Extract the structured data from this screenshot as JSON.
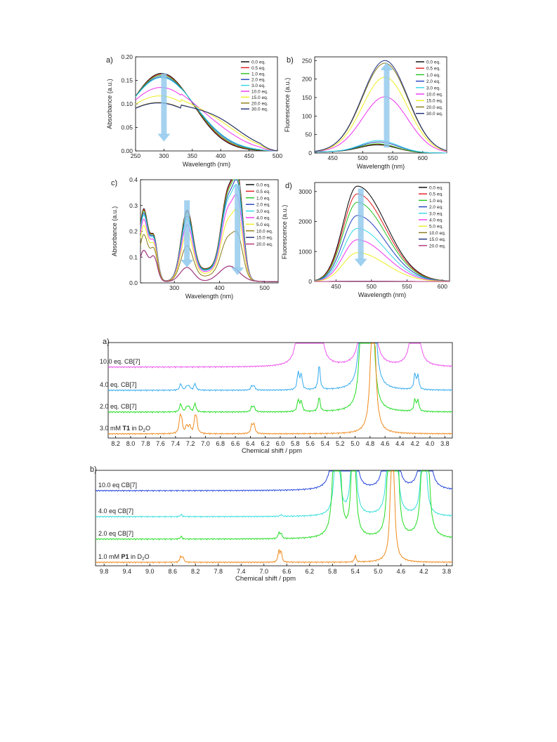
{
  "chart_data": [
    {
      "panel": "a)",
      "type": "line",
      "xlabel": "Wavelength (nm)",
      "ylabel": "Absorbance (a.u.)",
      "xlim": [
        250,
        500
      ],
      "ylim": [
        0,
        0.2
      ],
      "xticks": [
        "250",
        "300",
        "350",
        "400",
        "450",
        "500"
      ],
      "yticks": [
        "0.00",
        "0.05",
        "0.10",
        "0.15",
        "0.20"
      ],
      "legend_position": "top-right",
      "arrow": {
        "direction": "down",
        "x": 300,
        "y_from": 0.165,
        "y_to": 0.02
      },
      "series": [
        {
          "name": "0.0 eq.",
          "color": "#000000",
          "peak_x": 296,
          "peak_y": 0.165
        },
        {
          "name": "0.5 eq.",
          "color": "#e41a1c",
          "peak_x": 296,
          "peak_y": 0.163
        },
        {
          "name": "1.0 eq.",
          "color": "#22c322",
          "peak_x": 296,
          "peak_y": 0.161
        },
        {
          "name": "2.0 eq.",
          "color": "#1f3fbf",
          "peak_x": 296,
          "peak_y": 0.158
        },
        {
          "name": "3.0 eq.",
          "color": "#33d6e6",
          "peak_x": 296,
          "peak_y": 0.156
        },
        {
          "name": "10.0 eq.",
          "color": "#ee33ee",
          "peak_x": 295,
          "peak_y": 0.135
        },
        {
          "name": "15.0 eq.",
          "color": "#eded22",
          "peak_x": 293,
          "peak_y": 0.117
        },
        {
          "name": "20.0 eq.",
          "color": "#8a7a1a",
          "peak_x": 290,
          "peak_y": 0.103
        },
        {
          "name": "30.0 eq.",
          "color": "#1a2a7a",
          "peak_x": 290,
          "peak_y": 0.102
        }
      ]
    },
    {
      "panel": "b)",
      "type": "line",
      "xlabel": "Wavelength (nm)",
      "ylabel": "Fluorescence (a.u.)",
      "xlim": [
        420,
        640
      ],
      "ylim": [
        0,
        260
      ],
      "xticks": [
        "450",
        "500",
        "550",
        "600"
      ],
      "yticks": [
        "0",
        "50",
        "100",
        "150",
        "200",
        "250"
      ],
      "legend_position": "top-right",
      "arrow": {
        "direction": "up",
        "x": 540,
        "y_from": 15,
        "y_to": 245
      },
      "series": [
        {
          "name": "0.0 eq.",
          "color": "#000000",
          "peak_x": 525,
          "peak_y": 22
        },
        {
          "name": "0.5 eq.",
          "color": "#e41a1c",
          "peak_x": 525,
          "peak_y": 24
        },
        {
          "name": "1.0 eq.",
          "color": "#22c322",
          "peak_x": 525,
          "peak_y": 25
        },
        {
          "name": "2.0 eq.",
          "color": "#1f3fbf",
          "peak_x": 527,
          "peak_y": 30
        },
        {
          "name": "3.0 eq.",
          "color": "#33d6e6",
          "peak_x": 527,
          "peak_y": 34
        },
        {
          "name": "10.0 eq.",
          "color": "#ee33ee",
          "peak_x": 537,
          "peak_y": 152
        },
        {
          "name": "15.0 eq.",
          "color": "#eded22",
          "peak_x": 537,
          "peak_y": 205
        },
        {
          "name": "20.0 eq.",
          "color": "#8a7a1a",
          "peak_x": 537,
          "peak_y": 243
        },
        {
          "name": "30.0 eq.",
          "color": "#1a2a7a",
          "peak_x": 537,
          "peak_y": 250
        }
      ]
    },
    {
      "panel": "c)",
      "type": "line",
      "xlabel": "Wavelength (nm)",
      "ylabel": "Absorbance (a.u.)",
      "xlim": [
        225,
        530
      ],
      "ylim": [
        0,
        0.4
      ],
      "xticks": [
        "300",
        "400",
        "500"
      ],
      "yticks": [
        "0.0",
        "0.1",
        "0.2",
        "0.3",
        "0.4"
      ],
      "legend_position": "top-right",
      "arrows": [
        {
          "direction": "down",
          "x": 328,
          "y_from": 0.32,
          "y_to": 0.06
        },
        {
          "direction": "down",
          "x": 440,
          "y_from": 0.38,
          "y_to": 0.03
        }
      ],
      "series": [
        {
          "name": "0.0 eq.",
          "color": "#000000",
          "level": 1.0
        },
        {
          "name": "0.5 eq.",
          "color": "#e41a1c",
          "level": 0.98
        },
        {
          "name": "1.0 eq.",
          "color": "#22c322",
          "level": 0.95
        },
        {
          "name": "2.0 eq.",
          "color": "#1f3fbf",
          "level": 0.9
        },
        {
          "name": "3.0 eq.",
          "color": "#33d6e6",
          "level": 0.85
        },
        {
          "name": "4.0 eq.",
          "color": "#ee33ee",
          "level": 0.75
        },
        {
          "name": "5.0 eq.",
          "color": "#eded22",
          "level": 0.6
        },
        {
          "name": "10.0 eq.",
          "color": "#8a7a1a",
          "level": 0.38
        },
        {
          "name": "15.0 eq.",
          "color": "#1a2a7a",
          "level": 0.0
        },
        {
          "name": "20.0 eq.",
          "color": "#b2307a",
          "level": 0.0
        }
      ]
    },
    {
      "panel": "d)",
      "type": "line",
      "xlabel": "Wavelength (nm)",
      "ylabel": "Fluorescence (a.u.)",
      "xlim": [
        420,
        610
      ],
      "ylim": [
        0,
        3300
      ],
      "xticks": [
        "450",
        "500",
        "550",
        "600"
      ],
      "yticks": [
        "0",
        "1000",
        "2000",
        "3000"
      ],
      "legend_position": "top-right",
      "arrow": {
        "direction": "down",
        "x": 485,
        "y_from": 3100,
        "y_to": 500
      },
      "series": [
        {
          "name": "0.0 eq.",
          "color": "#000000",
          "peak_x": 480,
          "peak_y": 3180
        },
        {
          "name": "0.5 eq.",
          "color": "#e41a1c",
          "peak_x": 480,
          "peak_y": 2920
        },
        {
          "name": "1.0 eq.",
          "color": "#22c322",
          "peak_x": 480,
          "peak_y": 2640
        },
        {
          "name": "2.0 eq.",
          "color": "#1f3fbf",
          "peak_x": 480,
          "peak_y": 2200
        },
        {
          "name": "3.0 eq.",
          "color": "#33d6e6",
          "peak_x": 480,
          "peak_y": 1770
        },
        {
          "name": "4.0 eq.",
          "color": "#ee33ee",
          "peak_x": 480,
          "peak_y": 1390
        },
        {
          "name": "5.0 eq.",
          "color": "#eded22",
          "peak_x": 480,
          "peak_y": 960
        },
        {
          "name": "10.0 eq.",
          "color": "#8a7a1a",
          "peak_x": 480,
          "peak_y": 10
        },
        {
          "name": "15.0 eq.",
          "color": "#1a2a7a",
          "peak_x": 480,
          "peak_y": 8
        },
        {
          "name": "20.0 eq.",
          "color": "#b2307a",
          "peak_x": 480,
          "peak_y": 6
        }
      ]
    },
    {
      "panel": "a)",
      "type": "line",
      "subtype": "nmr-stack",
      "xlabel": "Chemical shift / ppm",
      "xlim": [
        8.3,
        3.7
      ],
      "xticks": [
        "8.2",
        "8.0",
        "7.8",
        "7.6",
        "7.4",
        "7.2",
        "7.0",
        "6.8",
        "6.6",
        "6.4",
        "6.2",
        "6.0",
        "5.8",
        "5.6",
        "5.4",
        "5.2",
        "5.0",
        "4.8",
        "4.6",
        "4.4",
        "4.2",
        "4.0",
        "3.8"
      ],
      "traces": [
        {
          "label": "10.0 eq. CB[7]",
          "color": "#ee55ee",
          "peaks": [
            {
              "x": 5.72,
              "h": 9
            },
            {
              "x": 5.5,
              "h": 9
            },
            {
              "x": 4.88,
              "h": 9
            },
            {
              "x": 4.78,
              "h": 9
            },
            {
              "x": 4.2,
              "h": 9
            }
          ]
        },
        {
          "label": "4.0 eq. CB[7]",
          "color": "#33aaee",
          "peaks": [
            {
              "x": 7.33,
              "h": 0.35
            },
            {
              "x": 7.25,
              "h": 0.2
            },
            {
              "x": 7.22,
              "h": 0.2
            },
            {
              "x": 7.14,
              "h": 0.35
            },
            {
              "x": 6.38,
              "h": 0.2
            },
            {
              "x": 6.35,
              "h": 0.2
            },
            {
              "x": 5.76,
              "h": 0.9
            },
            {
              "x": 5.72,
              "h": 0.8
            },
            {
              "x": 5.48,
              "h": 1.3
            },
            {
              "x": 4.9,
              "h": 9
            },
            {
              "x": 4.76,
              "h": 9
            },
            {
              "x": 4.2,
              "h": 0.8
            },
            {
              "x": 4.16,
              "h": 0.7
            }
          ]
        },
        {
          "label": "2.0 eq. CB[7]",
          "color": "#22dd22",
          "peaks": [
            {
              "x": 7.33,
              "h": 0.45
            },
            {
              "x": 7.25,
              "h": 0.25
            },
            {
              "x": 7.22,
              "h": 0.25
            },
            {
              "x": 7.14,
              "h": 0.45
            },
            {
              "x": 6.38,
              "h": 0.25
            },
            {
              "x": 6.35,
              "h": 0.25
            },
            {
              "x": 5.76,
              "h": 0.6
            },
            {
              "x": 5.72,
              "h": 0.55
            },
            {
              "x": 5.48,
              "h": 0.75
            },
            {
              "x": 4.9,
              "h": 9
            },
            {
              "x": 4.78,
              "h": 9
            },
            {
              "x": 4.2,
              "h": 0.6
            },
            {
              "x": 4.16,
              "h": 0.55
            }
          ]
        },
        {
          "label": "3.0 mM T1 in D2O",
          "label_parts": [
            "3.0 mM ",
            "T1",
            " in D",
            "2",
            "O"
          ],
          "color": "#f08a1c",
          "peaks": [
            {
              "x": 7.34,
              "h": 0.7
            },
            {
              "x": 7.32,
              "h": 0.65
            },
            {
              "x": 7.25,
              "h": 0.4
            },
            {
              "x": 7.21,
              "h": 0.4
            },
            {
              "x": 7.14,
              "h": 0.7
            },
            {
              "x": 7.12,
              "h": 0.65
            },
            {
              "x": 6.38,
              "h": 0.45
            },
            {
              "x": 6.35,
              "h": 0.45
            },
            {
              "x": 4.76,
              "h": 9
            }
          ]
        }
      ]
    },
    {
      "panel": "b)",
      "type": "line",
      "subtype": "nmr-stack",
      "xlabel": "Chemical shift / ppm",
      "xlim": [
        9.95,
        3.7
      ],
      "xticks": [
        "9.8",
        "9.4",
        "9.0",
        "8.6",
        "8.2",
        "7.8",
        "7.4",
        "7.0",
        "6.6",
        "6.2",
        "5.8",
        "5.4",
        "5.0",
        "4.6",
        "4.2",
        "3.8"
      ],
      "traces": [
        {
          "label": "10.0 eq CB[7]",
          "color": "#2244dd",
          "peaks": [
            {
              "x": 5.75,
              "h": 9
            },
            {
              "x": 5.7,
              "h": 9
            },
            {
              "x": 5.43,
              "h": 9
            },
            {
              "x": 4.85,
              "h": 9
            },
            {
              "x": 4.7,
              "h": 9
            },
            {
              "x": 4.2,
              "h": 9
            },
            {
              "x": 4.15,
              "h": 9
            }
          ]
        },
        {
          "label": "4.0 eq CB[7]",
          "color": "#33dddd",
          "peaks": [
            {
              "x": 8.45,
              "h": 0.12
            },
            {
              "x": 6.7,
              "h": 0.1
            },
            {
              "x": 5.72,
              "h": 9
            },
            {
              "x": 5.43,
              "h": 9
            },
            {
              "x": 4.8,
              "h": 9
            },
            {
              "x": 4.7,
              "h": 9
            },
            {
              "x": 4.2,
              "h": 9
            }
          ]
        },
        {
          "label": "2.0 eq CB[7]",
          "color": "#22dd22",
          "peaks": [
            {
              "x": 8.45,
              "h": 0.15
            },
            {
              "x": 6.74,
              "h": 0.3
            },
            {
              "x": 6.7,
              "h": 0.3
            },
            {
              "x": 5.75,
              "h": 9
            },
            {
              "x": 5.7,
              "h": 9
            },
            {
              "x": 5.43,
              "h": 9
            },
            {
              "x": 4.8,
              "h": 9
            },
            {
              "x": 4.68,
              "h": 9
            },
            {
              "x": 4.2,
              "h": 9
            },
            {
              "x": 4.15,
              "h": 9
            }
          ]
        },
        {
          "label": "1.0 mM P1 in D2O",
          "label_parts": [
            "1.0 mM ",
            "P1",
            " in D",
            "2",
            "O"
          ],
          "color": "#f08a1c",
          "peaks": [
            {
              "x": 8.46,
              "h": 0.3
            },
            {
              "x": 8.42,
              "h": 0.3
            },
            {
              "x": 6.74,
              "h": 0.6
            },
            {
              "x": 6.7,
              "h": 0.6
            },
            {
              "x": 5.4,
              "h": 0.35
            },
            {
              "x": 4.75,
              "h": 9
            }
          ]
        }
      ]
    }
  ]
}
